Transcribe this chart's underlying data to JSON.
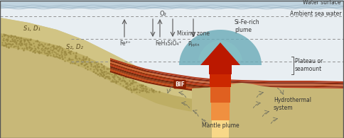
{
  "water_bg": "#e8eef2",
  "water_light": "#dce8f0",
  "seafloor_tan": "#c8b878",
  "seafloor_light": "#d4c888",
  "seafloor_dark_sed": "#b8a858",
  "bif_colors": [
    "#7a1800",
    "#c03010",
    "#a02808",
    "#8b2000",
    "#c84010",
    "#7a1800",
    "#b03010",
    "#8b2000"
  ],
  "plume_teal_outer": "#6aabb8",
  "plume_teal_inner": "#88c4c8",
  "arrow_dark_red": "#bb1800",
  "arrow_red": "#cc2800",
  "arrow_orange": "#e06020",
  "arrow_light_orange": "#f09040",
  "arrow_cream": "#f8d888",
  "mantle_cream": "#f5e8b0",
  "mixing_zone_bg": "#e8e8e8",
  "water_surface_stripe": "#c0d4e0",
  "border_color": "#555555",
  "labels": {
    "water_surface": "Water surface",
    "ambient": "Ambient sea water",
    "mixing_zone": "Mixing zone",
    "o2": "O₂",
    "fe2": "Fe²⁺",
    "feh3sio4": "FeH₃SiO₄⁺",
    "pptn": "Pₚₚₜₙ",
    "si_fe_plume": "Si-Fe-rich\nplume",
    "plateau": "Plateau or\nseamount",
    "bif_label": "BIF",
    "s1d1": "S₁, D₁",
    "s2d2": "S₂, D₂",
    "hydrothermal": "Hydrothermal\nsystem",
    "mantle_plume": "Mantle plume"
  }
}
